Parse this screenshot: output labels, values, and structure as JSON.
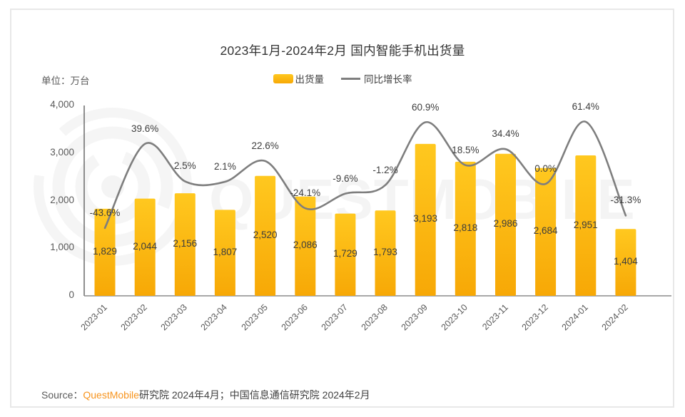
{
  "header": {
    "title": "2023年1月-2024年2月 国内智能手机出货量",
    "unit_label": "单位：万台"
  },
  "legend": {
    "bar_label": "出货量",
    "line_label": "同比增长率"
  },
  "watermark": {
    "text": "QUESTMOBILE"
  },
  "footer": {
    "source_prefix": "Source：",
    "brand": "QuestMobile",
    "source_rest": "研究院 2024年4月；中国信息通信研究院 2024年2月"
  },
  "colors": {
    "bar_top": "#FFC81F",
    "bar_bottom": "#F7A806",
    "line": "#7E7E7E",
    "axis_left": "#5F5F5F",
    "axis_bottom": "#8C8C8C",
    "label_dark": "#3D3D3D",
    "axis_text": "#595959",
    "brand_orange": "#F7941E",
    "card_border": "#E8E8E8"
  },
  "chart_data": {
    "type": "bar",
    "title": "2023年1月-2024年2月 国内智能手机出货量",
    "unit": "万台",
    "legend_position": "top",
    "grid": false,
    "categories": [
      "2023-01",
      "2023-02",
      "2023-03",
      "2023-04",
      "2023-05",
      "2023-06",
      "2023-07",
      "2023-08",
      "2023-09",
      "2023-10",
      "2023-11",
      "2023-12",
      "2024-01",
      "2024-02"
    ],
    "series": [
      {
        "name": "出货量",
        "type": "bar",
        "values": [
          1829,
          2044,
          2156,
          1807,
          2520,
          2086,
          1729,
          1793,
          3193,
          2818,
          2986,
          2684,
          2951,
          1404
        ],
        "labels": [
          "1,829",
          "2,044",
          "2,156",
          "1,807",
          "2,520",
          "2,086",
          "1,729",
          "1,793",
          "3,193",
          "2,818",
          "2,986",
          "2,684",
          "2,951",
          "1,404"
        ]
      },
      {
        "name": "同比增长率",
        "type": "line",
        "unit": "%",
        "values": [
          -43.6,
          39.6,
          2.5,
          2.1,
          22.6,
          -24.1,
          -9.6,
          -1.2,
          60.9,
          18.5,
          34.4,
          0.0,
          61.4,
          -31.3
        ],
        "labels": [
          "-43.6%",
          "39.6%",
          "2.5%",
          "2.1%",
          "22.6%",
          "-24.1%",
          "-9.6%",
          "-1.2%",
          "60.9%",
          "18.5%",
          "34.4%",
          "0.0%",
          "61.4%",
          "-31.3%"
        ]
      }
    ],
    "y_axis": {
      "min": 0,
      "max": 4000,
      "tick_interval": 1000,
      "tick_labels": [
        "0",
        "1,000",
        "2,000",
        "3,000",
        "4,000"
      ]
    }
  }
}
